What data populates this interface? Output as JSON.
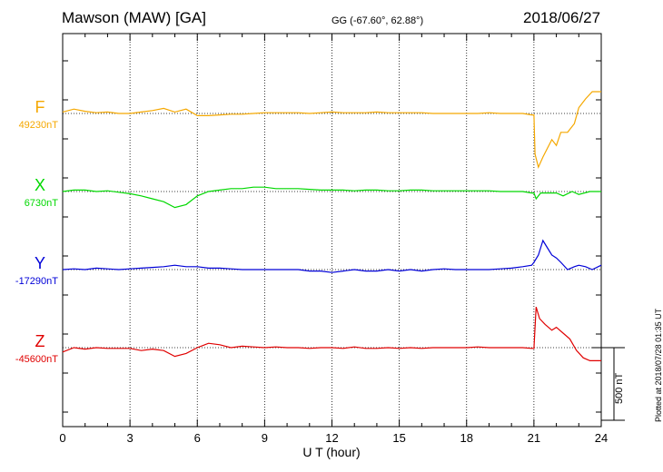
{
  "header": {
    "title": "Mawson (MAW)  [GA]",
    "coords": "GG (-67.60°,  62.88°)",
    "date": "2018/06/27"
  },
  "footer_note": "Plotted at 2018/07/28 01:35 UT",
  "scale_label": "500 nT",
  "colors": {
    "F": "#f5a800",
    "X": "#00d800",
    "Y": "#0000d8",
    "Z": "#e00000"
  },
  "chart_data": {
    "type": "line",
    "xlabel": "U T (hour)",
    "xlim": [
      0,
      24
    ],
    "xticks": [
      "0",
      "3",
      "6",
      "9",
      "12",
      "15",
      "18",
      "21",
      "24"
    ],
    "grid": true,
    "scale_bar_nT": 500,
    "series": [
      {
        "name": "F",
        "baseline": "49230nT",
        "color": "#f5a800",
        "x": [
          0,
          0.5,
          1,
          1.5,
          2,
          2.5,
          3,
          3.5,
          4,
          4.5,
          5,
          5.5,
          6,
          6.5,
          7,
          7.5,
          8,
          8.5,
          9,
          9.5,
          10,
          10.5,
          11,
          11.5,
          12,
          12.5,
          13,
          13.5,
          14,
          14.5,
          15,
          15.5,
          16,
          16.5,
          17,
          17.5,
          18,
          18.5,
          19,
          19.5,
          20,
          20.5,
          20.9,
          21.0,
          21.05,
          21.2,
          21.4,
          21.6,
          21.8,
          22.0,
          22.2,
          22.5,
          22.8,
          23.0,
          23.3,
          23.6,
          24
        ],
        "values": [
          10,
          30,
          15,
          5,
          10,
          0,
          0,
          10,
          20,
          35,
          10,
          30,
          -15,
          -15,
          -10,
          -5,
          -5,
          0,
          5,
          5,
          5,
          5,
          0,
          5,
          10,
          5,
          5,
          5,
          10,
          5,
          5,
          5,
          5,
          0,
          0,
          0,
          0,
          0,
          5,
          0,
          0,
          0,
          -10,
          -10,
          -280,
          -370,
          -300,
          -240,
          -180,
          -220,
          -130,
          -130,
          -70,
          40,
          100,
          150,
          150
        ]
      },
      {
        "name": "X",
        "baseline": "6730nT",
        "color": "#00d800",
        "x": [
          0,
          0.5,
          1,
          1.5,
          2,
          2.5,
          3,
          3.5,
          4,
          4.5,
          5,
          5.5,
          6,
          6.5,
          7,
          7.5,
          8,
          8.5,
          9,
          9.5,
          10,
          10.5,
          11,
          11.5,
          12,
          12.5,
          13,
          13.5,
          14,
          14.5,
          15,
          15.5,
          16,
          16.5,
          17,
          17.5,
          18,
          18.5,
          19,
          19.5,
          20,
          20.5,
          20.9,
          21.0,
          21.1,
          21.3,
          21.6,
          22.0,
          22.3,
          22.7,
          23.0,
          23.5,
          24
        ],
        "values": [
          0,
          10,
          10,
          0,
          5,
          -5,
          -15,
          -30,
          -50,
          -70,
          -110,
          -90,
          -30,
          0,
          10,
          20,
          20,
          30,
          30,
          20,
          20,
          20,
          15,
          10,
          10,
          10,
          5,
          10,
          10,
          5,
          5,
          10,
          10,
          5,
          5,
          5,
          5,
          5,
          5,
          0,
          0,
          0,
          -10,
          -10,
          -50,
          -10,
          -10,
          -10,
          -30,
          0,
          -20,
          0,
          0
        ]
      },
      {
        "name": "Y",
        "baseline": "-17290nT",
        "color": "#0000d8",
        "x": [
          0,
          0.5,
          1,
          1.5,
          2,
          2.5,
          3,
          3.5,
          4,
          4.5,
          5,
          5.5,
          6,
          6.5,
          7,
          7.5,
          8,
          8.5,
          9,
          9.5,
          10,
          10.5,
          11,
          11.5,
          12,
          12.5,
          13,
          13.5,
          14,
          14.5,
          15,
          15.5,
          16,
          16.5,
          17,
          17.5,
          18,
          18.5,
          19,
          19.5,
          20,
          20.5,
          20.9,
          21.0,
          21.2,
          21.4,
          21.6,
          21.8,
          22.0,
          22.2,
          22.5,
          22.8,
          23.0,
          23.3,
          23.6,
          24
        ],
        "values": [
          0,
          5,
          0,
          10,
          5,
          0,
          5,
          10,
          15,
          20,
          30,
          20,
          20,
          10,
          10,
          5,
          0,
          0,
          0,
          0,
          0,
          0,
          -10,
          -10,
          -20,
          -10,
          0,
          -10,
          -10,
          0,
          -10,
          0,
          -10,
          0,
          5,
          0,
          0,
          0,
          0,
          5,
          10,
          20,
          30,
          50,
          100,
          200,
          150,
          100,
          80,
          50,
          0,
          20,
          30,
          20,
          0,
          30
        ]
      },
      {
        "name": "Z",
        "baseline": "-45600nT",
        "color": "#e00000",
        "x": [
          0,
          0.5,
          1,
          1.5,
          2,
          2.5,
          3,
          3.5,
          4,
          4.5,
          5,
          5.5,
          6,
          6.5,
          7,
          7.5,
          8,
          8.5,
          9,
          9.5,
          10,
          10.5,
          11,
          11.5,
          12,
          12.5,
          13,
          13.5,
          14,
          14.5,
          15,
          15.5,
          16,
          16.5,
          17,
          17.5,
          18,
          18.5,
          19,
          19.5,
          20,
          20.5,
          20.9,
          21.0,
          21.1,
          21.25,
          21.5,
          21.8,
          22.0,
          22.3,
          22.6,
          22.9,
          23.2,
          23.5,
          24
        ],
        "values": [
          -30,
          0,
          -10,
          0,
          -5,
          -5,
          -5,
          -20,
          -10,
          -20,
          -60,
          -40,
          0,
          30,
          20,
          0,
          10,
          5,
          0,
          5,
          0,
          0,
          -5,
          0,
          0,
          -5,
          5,
          -5,
          -5,
          0,
          -5,
          0,
          -5,
          0,
          0,
          0,
          0,
          5,
          0,
          0,
          0,
          0,
          -5,
          -5,
          280,
          200,
          160,
          120,
          140,
          100,
          60,
          -20,
          -70,
          -90,
          -90
        ]
      }
    ]
  }
}
